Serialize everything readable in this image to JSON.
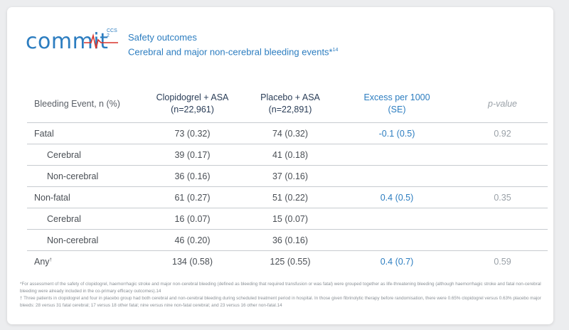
{
  "logo": {
    "word": "commit",
    "sup": "CCS 2"
  },
  "header": {
    "title": "Safety outcomes",
    "subtitle": "Cerebral and major non-cerebral bleeding events*",
    "subtitle_ref": "14"
  },
  "table": {
    "columns": [
      {
        "line1": "Bleeding Event, n (%)",
        "line2": ""
      },
      {
        "line1": "Clopidogrel + ASA",
        "line2": "(n=22,961)"
      },
      {
        "line1": "Placebo + ASA",
        "line2": "(n=22,891)"
      },
      {
        "line1": "Excess per 1000",
        "line2": "(SE)"
      },
      {
        "line1": "p-value",
        "line2": ""
      }
    ],
    "rows": [
      {
        "event": "Fatal",
        "sup": "",
        "clop": "73 (0.32)",
        "plac": "74 (0.32)",
        "excess": "-0.1 (0.5)",
        "p": "0.92"
      },
      {
        "event": "Cerebral",
        "sup": "",
        "clop": "39 (0.17)",
        "plac": "41 (0.18)",
        "excess": "",
        "p": ""
      },
      {
        "event": "Non-cerebral",
        "sup": "",
        "clop": "36 (0.16)",
        "plac": "37 (0.16)",
        "excess": "",
        "p": ""
      },
      {
        "event": "Non-fatal",
        "sup": "",
        "clop": "61 (0.27)",
        "plac": "51 (0.22)",
        "excess": "0.4 (0.5)",
        "p": "0.35"
      },
      {
        "event": "Cerebral",
        "sup": "",
        "clop": "16 (0.07)",
        "plac": "15 (0.07)",
        "excess": "",
        "p": ""
      },
      {
        "event": "Non-cerebral",
        "sup": "",
        "clop": "46 (0.20)",
        "plac": "36 (0.16)",
        "excess": "",
        "p": ""
      },
      {
        "event": "Any",
        "sup": "†",
        "clop": "134 (0.58)",
        "plac": "125 (0.55)",
        "excess": "0.4 (0.7)",
        "p": "0.59"
      }
    ]
  },
  "footnotes": [
    "*For assessment of the safety of clopidogrel, haemorrhagic stroke and major non-cerebral bleeding (defined as bleeding that required transfusion or was fatal) were grouped together as life-threatening bleeding (although haemorrhagic stroke and fatal non-cerebral bleeding were already included in the co-primary efficacy outcomes).14",
    "† Three patients in clopidogrel and four in placebo group had both cerebral and non-cerebral bleeding during scheduled treatment period in hospital. In those given fibrinolytic therapy before randomisation, there were 0.65% clopidogrel versus 0.63% placebo major bleeds: 28 versus 31 fatal cerebral; 17 versus 18 other fatal; nine versus nine non-fatal cerebral; and 23 versus 16 other non-fatal.14"
  ],
  "colors": {
    "brand_blue": "#2c7dc0",
    "brand_red": "#d9342b",
    "dark_navy": "#2a3d57",
    "muted_gray": "#9aa1a8"
  }
}
